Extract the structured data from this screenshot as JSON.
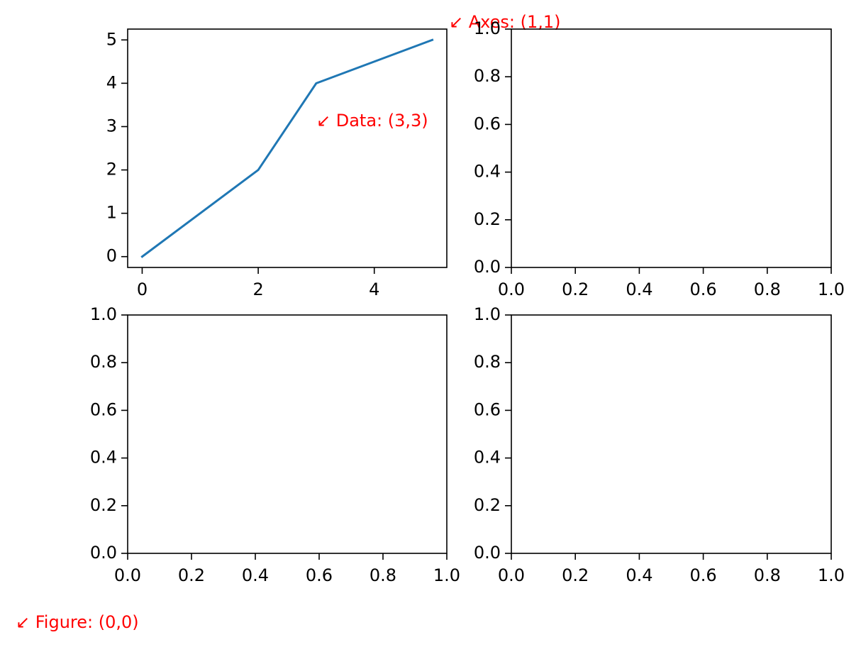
{
  "chart_data": [
    {
      "type": "line",
      "x": [
        0,
        2,
        3,
        5
      ],
      "values": [
        0,
        2,
        4,
        5
      ],
      "color": "#1f77b4",
      "xlim": [
        -0.25,
        5.25
      ],
      "ylim": [
        -0.25,
        5.25
      ],
      "xticks": [
        0,
        2,
        4
      ],
      "yticks": [
        0,
        1,
        2,
        3,
        4,
        5
      ],
      "annotations": [
        "↙ Data: (3,3)",
        "↙ Axes: (1,1)"
      ]
    },
    {
      "type": "line",
      "xlim": [
        0,
        1
      ],
      "ylim": [
        0,
        1
      ],
      "xticks": [
        {
          "value": 0,
          "label": "0.0"
        },
        {
          "value": 0.2,
          "label": "0.2"
        },
        {
          "value": 0.4,
          "label": "0.4"
        },
        {
          "value": 0.6,
          "label": "0.6"
        },
        {
          "value": 0.8,
          "label": "0.8"
        },
        {
          "value": 1,
          "label": "1.0"
        }
      ],
      "yticks": [
        {
          "value": 0,
          "label": "0.0"
        },
        {
          "value": 0.2,
          "label": "0.2"
        },
        {
          "value": 0.4,
          "label": "0.4"
        },
        {
          "value": 0.6,
          "label": "0.6"
        },
        {
          "value": 0.8,
          "label": "0.8"
        },
        {
          "value": 1,
          "label": "1.0"
        }
      ]
    },
    {
      "type": "line",
      "xlim": [
        0,
        1
      ],
      "ylim": [
        0,
        1
      ],
      "xticks": [
        {
          "value": 0,
          "label": "0.0"
        },
        {
          "value": 0.2,
          "label": "0.2"
        },
        {
          "value": 0.4,
          "label": "0.4"
        },
        {
          "value": 0.6,
          "label": "0.6"
        },
        {
          "value": 0.8,
          "label": "0.8"
        },
        {
          "value": 1,
          "label": "1.0"
        }
      ],
      "yticks": [
        {
          "value": 0,
          "label": "0.0"
        },
        {
          "value": 0.2,
          "label": "0.2"
        },
        {
          "value": 0.4,
          "label": "0.4"
        },
        {
          "value": 0.6,
          "label": "0.6"
        },
        {
          "value": 0.8,
          "label": "0.8"
        },
        {
          "value": 1,
          "label": "1.0"
        }
      ]
    },
    {
      "type": "line",
      "xlim": [
        0,
        1
      ],
      "ylim": [
        0,
        1
      ],
      "xticks": [
        {
          "value": 0,
          "label": "0.0"
        },
        {
          "value": 0.2,
          "label": "0.2"
        },
        {
          "value": 0.4,
          "label": "0.4"
        },
        {
          "value": 0.6,
          "label": "0.6"
        },
        {
          "value": 0.8,
          "label": "0.8"
        },
        {
          "value": 1,
          "label": "1.0"
        }
      ],
      "yticks": [
        {
          "value": 0,
          "label": "0.0"
        },
        {
          "value": 0.2,
          "label": "0.2"
        },
        {
          "value": 0.4,
          "label": "0.4"
        },
        {
          "value": 0.6,
          "label": "0.6"
        },
        {
          "value": 0.8,
          "label": "0.8"
        },
        {
          "value": 1,
          "label": "1.0"
        }
      ]
    }
  ],
  "annotation": "↙ Figure: (0,0)"
}
